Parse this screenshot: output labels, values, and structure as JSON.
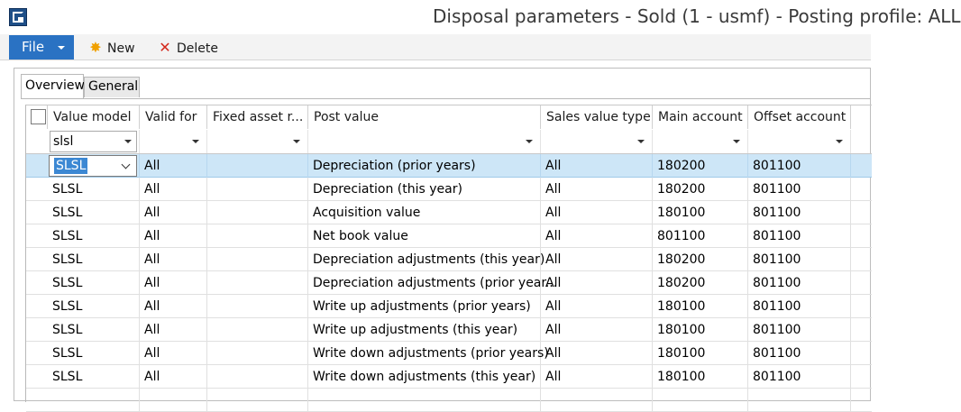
{
  "window": {
    "title": "Disposal parameters - Sold (1 - usmf) - Posting profile: ALL"
  },
  "toolbar": {
    "file_label": "File",
    "new_label": "New",
    "delete_label": "Delete",
    "new_icon": "sunburst-new-icon",
    "delete_icon": "red-x-delete-icon"
  },
  "tabs": [
    {
      "label": "Overview",
      "active": true
    },
    {
      "label": "General",
      "active": false
    }
  ],
  "grid": {
    "columns": [
      "Value model",
      "Valid for",
      "Fixed asset r...",
      "Post value",
      "Sales value type",
      "Main account",
      "Offset account"
    ],
    "filter": {
      "value_model": "slsl"
    },
    "editing_value": "SLSL",
    "rows": [
      [
        "SLSL",
        "All",
        "",
        "Depreciation (prior years)",
        "All",
        "180200",
        "801100"
      ],
      [
        "SLSL",
        "All",
        "",
        "Depreciation (this year)",
        "All",
        "180200",
        "801100"
      ],
      [
        "SLSL",
        "All",
        "",
        "Acquisition value",
        "All",
        "180100",
        "801100"
      ],
      [
        "SLSL",
        "All",
        "",
        "Net book value",
        "All",
        "801100",
        "801100"
      ],
      [
        "SLSL",
        "All",
        "",
        "Depreciation adjustments (this year)",
        "All",
        "180200",
        "801100"
      ],
      [
        "SLSL",
        "All",
        "",
        "Depreciation adjustments (prior year...",
        "All",
        "180200",
        "801100"
      ],
      [
        "SLSL",
        "All",
        "",
        "Write up adjustments (prior years)",
        "All",
        "180100",
        "801100"
      ],
      [
        "SLSL",
        "All",
        "",
        "Write up adjustments (this year)",
        "All",
        "180100",
        "801100"
      ],
      [
        "SLSL",
        "All",
        "",
        "Write down adjustments (prior years)",
        "All",
        "180100",
        "801100"
      ],
      [
        "SLSL",
        "All",
        "",
        "Write down adjustments (this year)",
        "All",
        "180100",
        "801100"
      ]
    ]
  },
  "colors": {
    "file_button": "#2a72c3",
    "selected_row": "#cde6f7",
    "selection_text_bg": "#3c88d3"
  }
}
